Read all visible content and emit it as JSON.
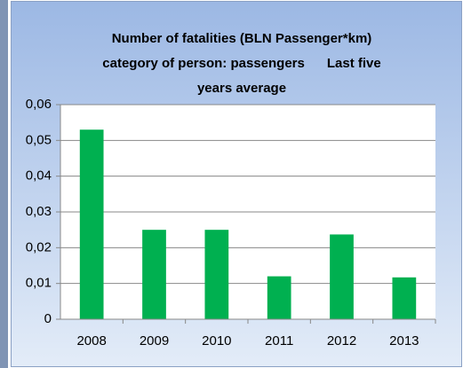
{
  "chart_data": {
    "type": "bar",
    "title": [
      "Number of fatalities (BLN Passenger*km)",
      "category of person: passengers      Last five",
      "years average"
    ],
    "categories": [
      "2008",
      "2009",
      "2010",
      "2011",
      "2012",
      "2013"
    ],
    "values": [
      0.053,
      0.025,
      0.025,
      0.012,
      0.0237,
      0.0117
    ],
    "color": "#00b050",
    "ylim": [
      0,
      0.06
    ],
    "yticks": [
      0,
      {
        "value": 0.01,
        "label": "0,01"
      },
      {
        "value": 0.02,
        "label": "0,02"
      },
      {
        "value": 0.03,
        "label": "0,03"
      },
      {
        "value": 0.04,
        "label": "0,04"
      },
      {
        "value": 0.05,
        "label": "0,05"
      },
      {
        "value": 0.06,
        "label": "0,06"
      }
    ],
    "grid": true
  }
}
